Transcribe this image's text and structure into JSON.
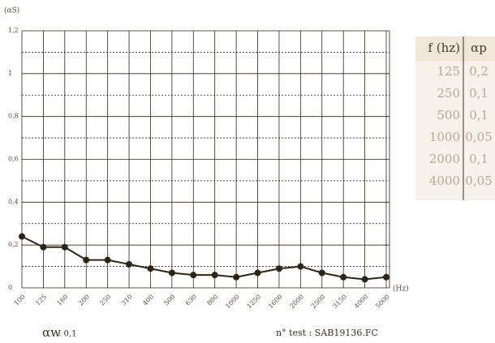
{
  "chart_data": {
    "type": "line",
    "y_label": "(αS)",
    "x_label": "(Hz)",
    "categories": [
      "100",
      "125",
      "160",
      "200",
      "250",
      "310",
      "400",
      "500",
      "630",
      "800",
      "1000",
      "1250",
      "1600",
      "2000",
      "2500",
      "3150",
      "4000",
      "5000"
    ],
    "series": [
      {
        "color": "#2e2416",
        "values": [
          0.24,
          0.19,
          0.19,
          0.13,
          0.13,
          0.11,
          0.09,
          0.07,
          0.06,
          0.06,
          0.05,
          0.07,
          0.09,
          0.1,
          0.07,
          0.05,
          0.04,
          0.05
        ]
      }
    ],
    "ylim": [
      0,
      1.2
    ],
    "yticks": [
      {
        "value": 0,
        "label": "0"
      },
      {
        "value": 0.2,
        "label": "0,2"
      },
      {
        "value": 0.4,
        "label": "0,4"
      },
      {
        "value": 0.6,
        "label": "0,6"
      },
      {
        "value": 0.8,
        "label": "0,8"
      },
      {
        "value": 1,
        "label": "1"
      },
      {
        "value": 1.2,
        "label": "1,2"
      }
    ],
    "minor_yticks": [
      0.1,
      0.3,
      0.5,
      0.7,
      0.9,
      1.1
    ],
    "grid": true
  },
  "table": {
    "header": [
      "f (hz)",
      "αp"
    ],
    "rows": [
      [
        "125",
        "0,2"
      ],
      [
        "250",
        "0,1"
      ],
      [
        "500",
        "0,1"
      ],
      [
        "1000",
        "0,05"
      ],
      [
        "2000",
        "0,1"
      ],
      [
        "4000",
        "0,05"
      ]
    ]
  },
  "footer": {
    "alpha_w_symbol": "αw",
    "alpha_w_value": ": 0,1",
    "test": "n° test : SAB19136.FC"
  }
}
